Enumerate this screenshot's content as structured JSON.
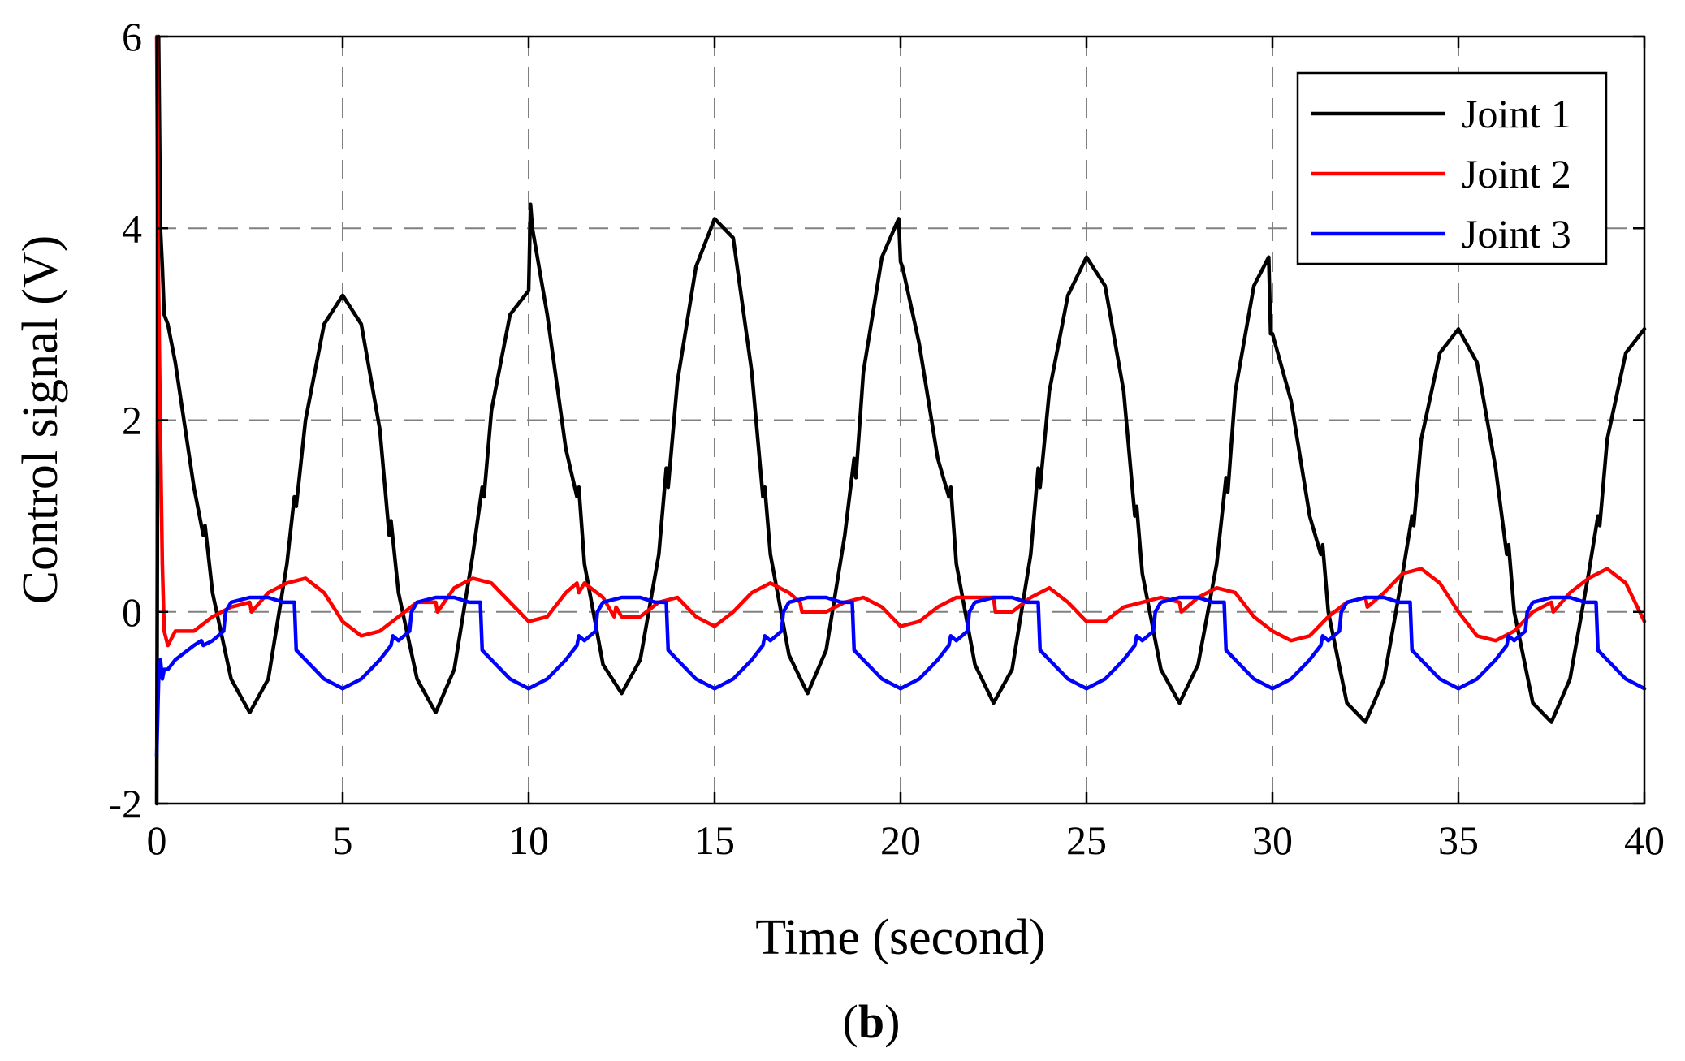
{
  "chart_data": {
    "type": "line",
    "title": "",
    "xlabel": "Time (second)",
    "ylabel": "Control signal (V)",
    "xlim": [
      0,
      40
    ],
    "ylim": [
      -2,
      6
    ],
    "xticks": [
      0,
      5,
      10,
      15,
      20,
      25,
      30,
      35,
      40
    ],
    "yticks": [
      -2,
      0,
      2,
      4,
      6
    ],
    "xtick_labels": [
      "0",
      "5",
      "10",
      "15",
      "20",
      "25",
      "30",
      "35",
      "40"
    ],
    "ytick_labels": [
      "-2",
      "0",
      "2",
      "4",
      "6"
    ],
    "grid": true,
    "legend_position": "top-right",
    "caption_letter": "b",
    "caption_open": "(",
    "caption_close": ")",
    "series": [
      {
        "name": "Joint 1",
        "color": "#000000",
        "x": [
          0,
          0.05,
          0.1,
          0.15,
          0.2,
          0.3,
          0.5,
          1.0,
          1.25,
          1.3,
          1.5,
          2.0,
          2.5,
          3.0,
          3.5,
          3.7,
          3.75,
          4.0,
          4.5,
          5.0,
          5.5,
          6.0,
          6.25,
          6.3,
          6.5,
          7.0,
          7.5,
          8.0,
          8.5,
          8.75,
          8.8,
          9.0,
          9.5,
          10.0,
          10.05,
          10.1,
          10.5,
          11.0,
          11.3,
          11.35,
          11.5,
          12.0,
          12.5,
          13.0,
          13.5,
          13.7,
          13.75,
          14.0,
          14.5,
          15.0,
          15.5,
          16.0,
          16.3,
          16.35,
          16.5,
          17.0,
          17.5,
          18.0,
          18.5,
          18.75,
          18.8,
          19.0,
          19.5,
          19.95,
          20.0,
          20.05,
          20.5,
          21.0,
          21.3,
          21.35,
          21.5,
          22.0,
          22.5,
          23.0,
          23.5,
          23.7,
          23.75,
          24.0,
          24.5,
          25.0,
          25.5,
          26.0,
          26.3,
          26.35,
          26.5,
          27.0,
          27.5,
          28.0,
          28.5,
          28.75,
          28.8,
          29.0,
          29.5,
          29.9,
          29.95,
          30.0,
          30.5,
          31.0,
          31.3,
          31.35,
          31.5,
          32.0,
          32.5,
          33.0,
          33.5,
          33.75,
          33.8,
          34.0,
          34.5,
          35.0,
          35.5,
          36.0,
          36.3,
          36.35,
          36.5,
          37.0,
          37.5,
          38.0,
          38.5,
          38.75,
          38.8,
          39.0,
          39.5,
          40.0
        ],
        "y": [
          -2.0,
          6.0,
          4.0,
          3.6,
          3.1,
          3.0,
          2.6,
          1.3,
          0.8,
          0.9,
          0.2,
          -0.7,
          -1.05,
          -0.7,
          0.5,
          1.2,
          1.1,
          2.0,
          3.0,
          3.3,
          3.0,
          1.9,
          0.8,
          0.95,
          0.2,
          -0.7,
          -1.05,
          -0.6,
          0.6,
          1.3,
          1.2,
          2.1,
          3.1,
          3.35,
          4.25,
          4.0,
          3.1,
          1.7,
          1.2,
          1.3,
          0.5,
          -0.55,
          -0.85,
          -0.5,
          0.6,
          1.5,
          1.3,
          2.4,
          3.6,
          4.1,
          3.9,
          2.5,
          1.2,
          1.3,
          0.6,
          -0.45,
          -0.85,
          -0.4,
          0.8,
          1.6,
          1.4,
          2.5,
          3.7,
          4.1,
          3.65,
          3.6,
          2.8,
          1.6,
          1.2,
          1.3,
          0.5,
          -0.55,
          -0.95,
          -0.6,
          0.6,
          1.5,
          1.3,
          2.3,
          3.3,
          3.7,
          3.4,
          2.3,
          1.0,
          1.1,
          0.4,
          -0.6,
          -0.95,
          -0.55,
          0.5,
          1.4,
          1.25,
          2.3,
          3.4,
          3.7,
          2.9,
          2.9,
          2.2,
          1.0,
          0.6,
          0.7,
          0.0,
          -0.95,
          -1.15,
          -0.7,
          0.4,
          1.0,
          0.9,
          1.8,
          2.7,
          2.95,
          2.6,
          1.5,
          0.6,
          0.7,
          0.0,
          -0.95,
          -1.15,
          -0.7,
          0.4,
          1.0,
          0.9,
          1.8,
          2.7,
          2.95
        ]
      },
      {
        "name": "Joint 2",
        "color": "#ff0000",
        "x": [
          0,
          0.03,
          0.1,
          0.15,
          0.2,
          0.3,
          0.5,
          1.0,
          1.5,
          2.0,
          2.5,
          2.55,
          3.0,
          3.5,
          4.0,
          4.5,
          5.0,
          5.5,
          6.0,
          6.5,
          7.0,
          7.5,
          7.55,
          8.0,
          8.5,
          9.0,
          9.5,
          10.0,
          10.5,
          11.0,
          11.3,
          11.35,
          11.5,
          12.0,
          12.3,
          12.35,
          12.5,
          13.0,
          13.5,
          14.0,
          14.5,
          15.0,
          15.5,
          16.0,
          16.5,
          17.0,
          17.3,
          17.35,
          17.5,
          18.0,
          18.5,
          19.0,
          19.5,
          20.0,
          20.5,
          21.0,
          21.5,
          22.0,
          22.5,
          22.55,
          23.0,
          23.5,
          24.0,
          24.5,
          25.0,
          25.5,
          26.0,
          26.5,
          27.0,
          27.5,
          27.55,
          28.0,
          28.5,
          29.0,
          29.5,
          30.0,
          30.5,
          31.0,
          31.5,
          32.0,
          32.5,
          32.55,
          33.0,
          33.5,
          34.0,
          34.5,
          35.0,
          35.5,
          36.0,
          36.5,
          37.0,
          37.5,
          37.55,
          38.0,
          38.5,
          39.0,
          39.5,
          40.0
        ],
        "y": [
          6.0,
          4.0,
          1.8,
          0.5,
          -0.2,
          -0.35,
          -0.2,
          -0.2,
          -0.05,
          0.05,
          0.1,
          0.0,
          0.2,
          0.3,
          0.35,
          0.2,
          -0.1,
          -0.25,
          -0.2,
          -0.05,
          0.1,
          0.1,
          0.0,
          0.25,
          0.35,
          0.3,
          0.1,
          -0.1,
          -0.05,
          0.2,
          0.3,
          0.2,
          0.3,
          0.15,
          -0.05,
          0.05,
          -0.05,
          -0.05,
          0.1,
          0.15,
          -0.05,
          -0.15,
          0.0,
          0.2,
          0.3,
          0.2,
          0.1,
          0.0,
          0.0,
          0.0,
          0.1,
          0.15,
          0.05,
          -0.15,
          -0.1,
          0.05,
          0.15,
          0.15,
          0.15,
          0.0,
          0.0,
          0.15,
          0.25,
          0.1,
          -0.1,
          -0.1,
          0.05,
          0.1,
          0.15,
          0.1,
          0.0,
          0.15,
          0.25,
          0.2,
          -0.05,
          -0.2,
          -0.3,
          -0.25,
          -0.05,
          0.1,
          0.15,
          0.05,
          0.2,
          0.4,
          0.45,
          0.3,
          0.0,
          -0.25,
          -0.3,
          -0.2,
          0.0,
          0.1,
          0.0,
          0.2,
          0.35,
          0.45,
          0.3,
          -0.1
        ]
      },
      {
        "name": "Joint 3",
        "color": "#0000ff",
        "x": [
          0,
          0.05,
          0.1,
          0.15,
          0.2,
          0.3,
          0.5,
          1.0,
          1.2,
          1.25,
          1.5,
          1.8,
          1.85,
          2.0,
          2.5,
          3.0,
          3.4,
          3.5,
          3.7,
          3.75,
          4.0,
          4.5,
          5.0,
          5.5,
          6.0,
          6.3,
          6.35,
          6.5,
          6.8,
          6.85,
          7.0,
          7.5,
          8.0,
          8.4,
          8.5,
          8.7,
          8.75,
          9.0,
          9.5,
          10.0,
          10.5,
          11.0,
          11.3,
          11.35,
          11.5,
          11.8,
          11.85,
          12.0,
          12.5,
          13.0,
          13.4,
          13.5,
          13.7,
          13.75,
          14.0,
          14.5,
          15.0,
          15.5,
          16.0,
          16.3,
          16.35,
          16.5,
          16.8,
          16.85,
          17.0,
          17.5,
          18.0,
          18.4,
          18.5,
          18.7,
          18.75,
          19.0,
          19.5,
          20.0,
          20.5,
          21.0,
          21.3,
          21.35,
          21.5,
          21.8,
          21.85,
          22.0,
          22.5,
          23.0,
          23.4,
          23.5,
          23.7,
          23.75,
          24.0,
          24.5,
          25.0,
          25.5,
          26.0,
          26.3,
          26.35,
          26.5,
          26.8,
          26.85,
          27.0,
          27.5,
          28.0,
          28.4,
          28.5,
          28.7,
          28.75,
          29.0,
          29.5,
          30.0,
          30.5,
          31.0,
          31.3,
          31.35,
          31.5,
          31.8,
          31.85,
          32.0,
          32.5,
          33.0,
          33.4,
          33.5,
          33.7,
          33.75,
          34.0,
          34.5,
          35.0,
          35.5,
          36.0,
          36.3,
          36.35,
          36.5,
          36.8,
          36.85,
          37.0,
          37.5,
          38.0,
          38.4,
          38.5,
          38.7,
          38.75,
          39.0,
          39.5,
          40.0
        ],
        "y": [
          -1.5,
          -0.7,
          -0.5,
          -0.7,
          -0.6,
          -0.6,
          -0.5,
          -0.35,
          -0.3,
          -0.35,
          -0.3,
          -0.2,
          0.0,
          0.1,
          0.15,
          0.15,
          0.1,
          0.1,
          0.1,
          -0.4,
          -0.5,
          -0.7,
          -0.8,
          -0.7,
          -0.5,
          -0.35,
          -0.25,
          -0.3,
          -0.2,
          0.0,
          0.1,
          0.15,
          0.15,
          0.1,
          0.1,
          0.1,
          -0.4,
          -0.5,
          -0.7,
          -0.8,
          -0.7,
          -0.5,
          -0.35,
          -0.25,
          -0.3,
          -0.2,
          0.0,
          0.1,
          0.15,
          0.15,
          0.1,
          0.1,
          0.1,
          -0.4,
          -0.5,
          -0.7,
          -0.8,
          -0.7,
          -0.5,
          -0.35,
          -0.25,
          -0.3,
          -0.2,
          0.0,
          0.1,
          0.15,
          0.15,
          0.1,
          0.1,
          0.1,
          -0.4,
          -0.5,
          -0.7,
          -0.8,
          -0.7,
          -0.5,
          -0.35,
          -0.25,
          -0.3,
          -0.2,
          0.0,
          0.1,
          0.15,
          0.15,
          0.1,
          0.1,
          0.1,
          -0.4,
          -0.5,
          -0.7,
          -0.8,
          -0.7,
          -0.5,
          -0.35,
          -0.25,
          -0.3,
          -0.2,
          0.0,
          0.1,
          0.15,
          0.15,
          0.1,
          0.1,
          0.1,
          -0.4,
          -0.5,
          -0.7,
          -0.8,
          -0.7,
          -0.5,
          -0.35,
          -0.25,
          -0.3,
          -0.2,
          0.0,
          0.1,
          0.15,
          0.15,
          0.1,
          0.1,
          0.1,
          -0.4,
          -0.5,
          -0.7,
          -0.8,
          -0.7,
          -0.5,
          -0.35,
          -0.25,
          -0.3,
          -0.2,
          0.0,
          0.1,
          0.15,
          0.15,
          0.1,
          0.1,
          0.1,
          -0.4,
          -0.5,
          -0.7,
          -0.8
        ]
      }
    ]
  }
}
